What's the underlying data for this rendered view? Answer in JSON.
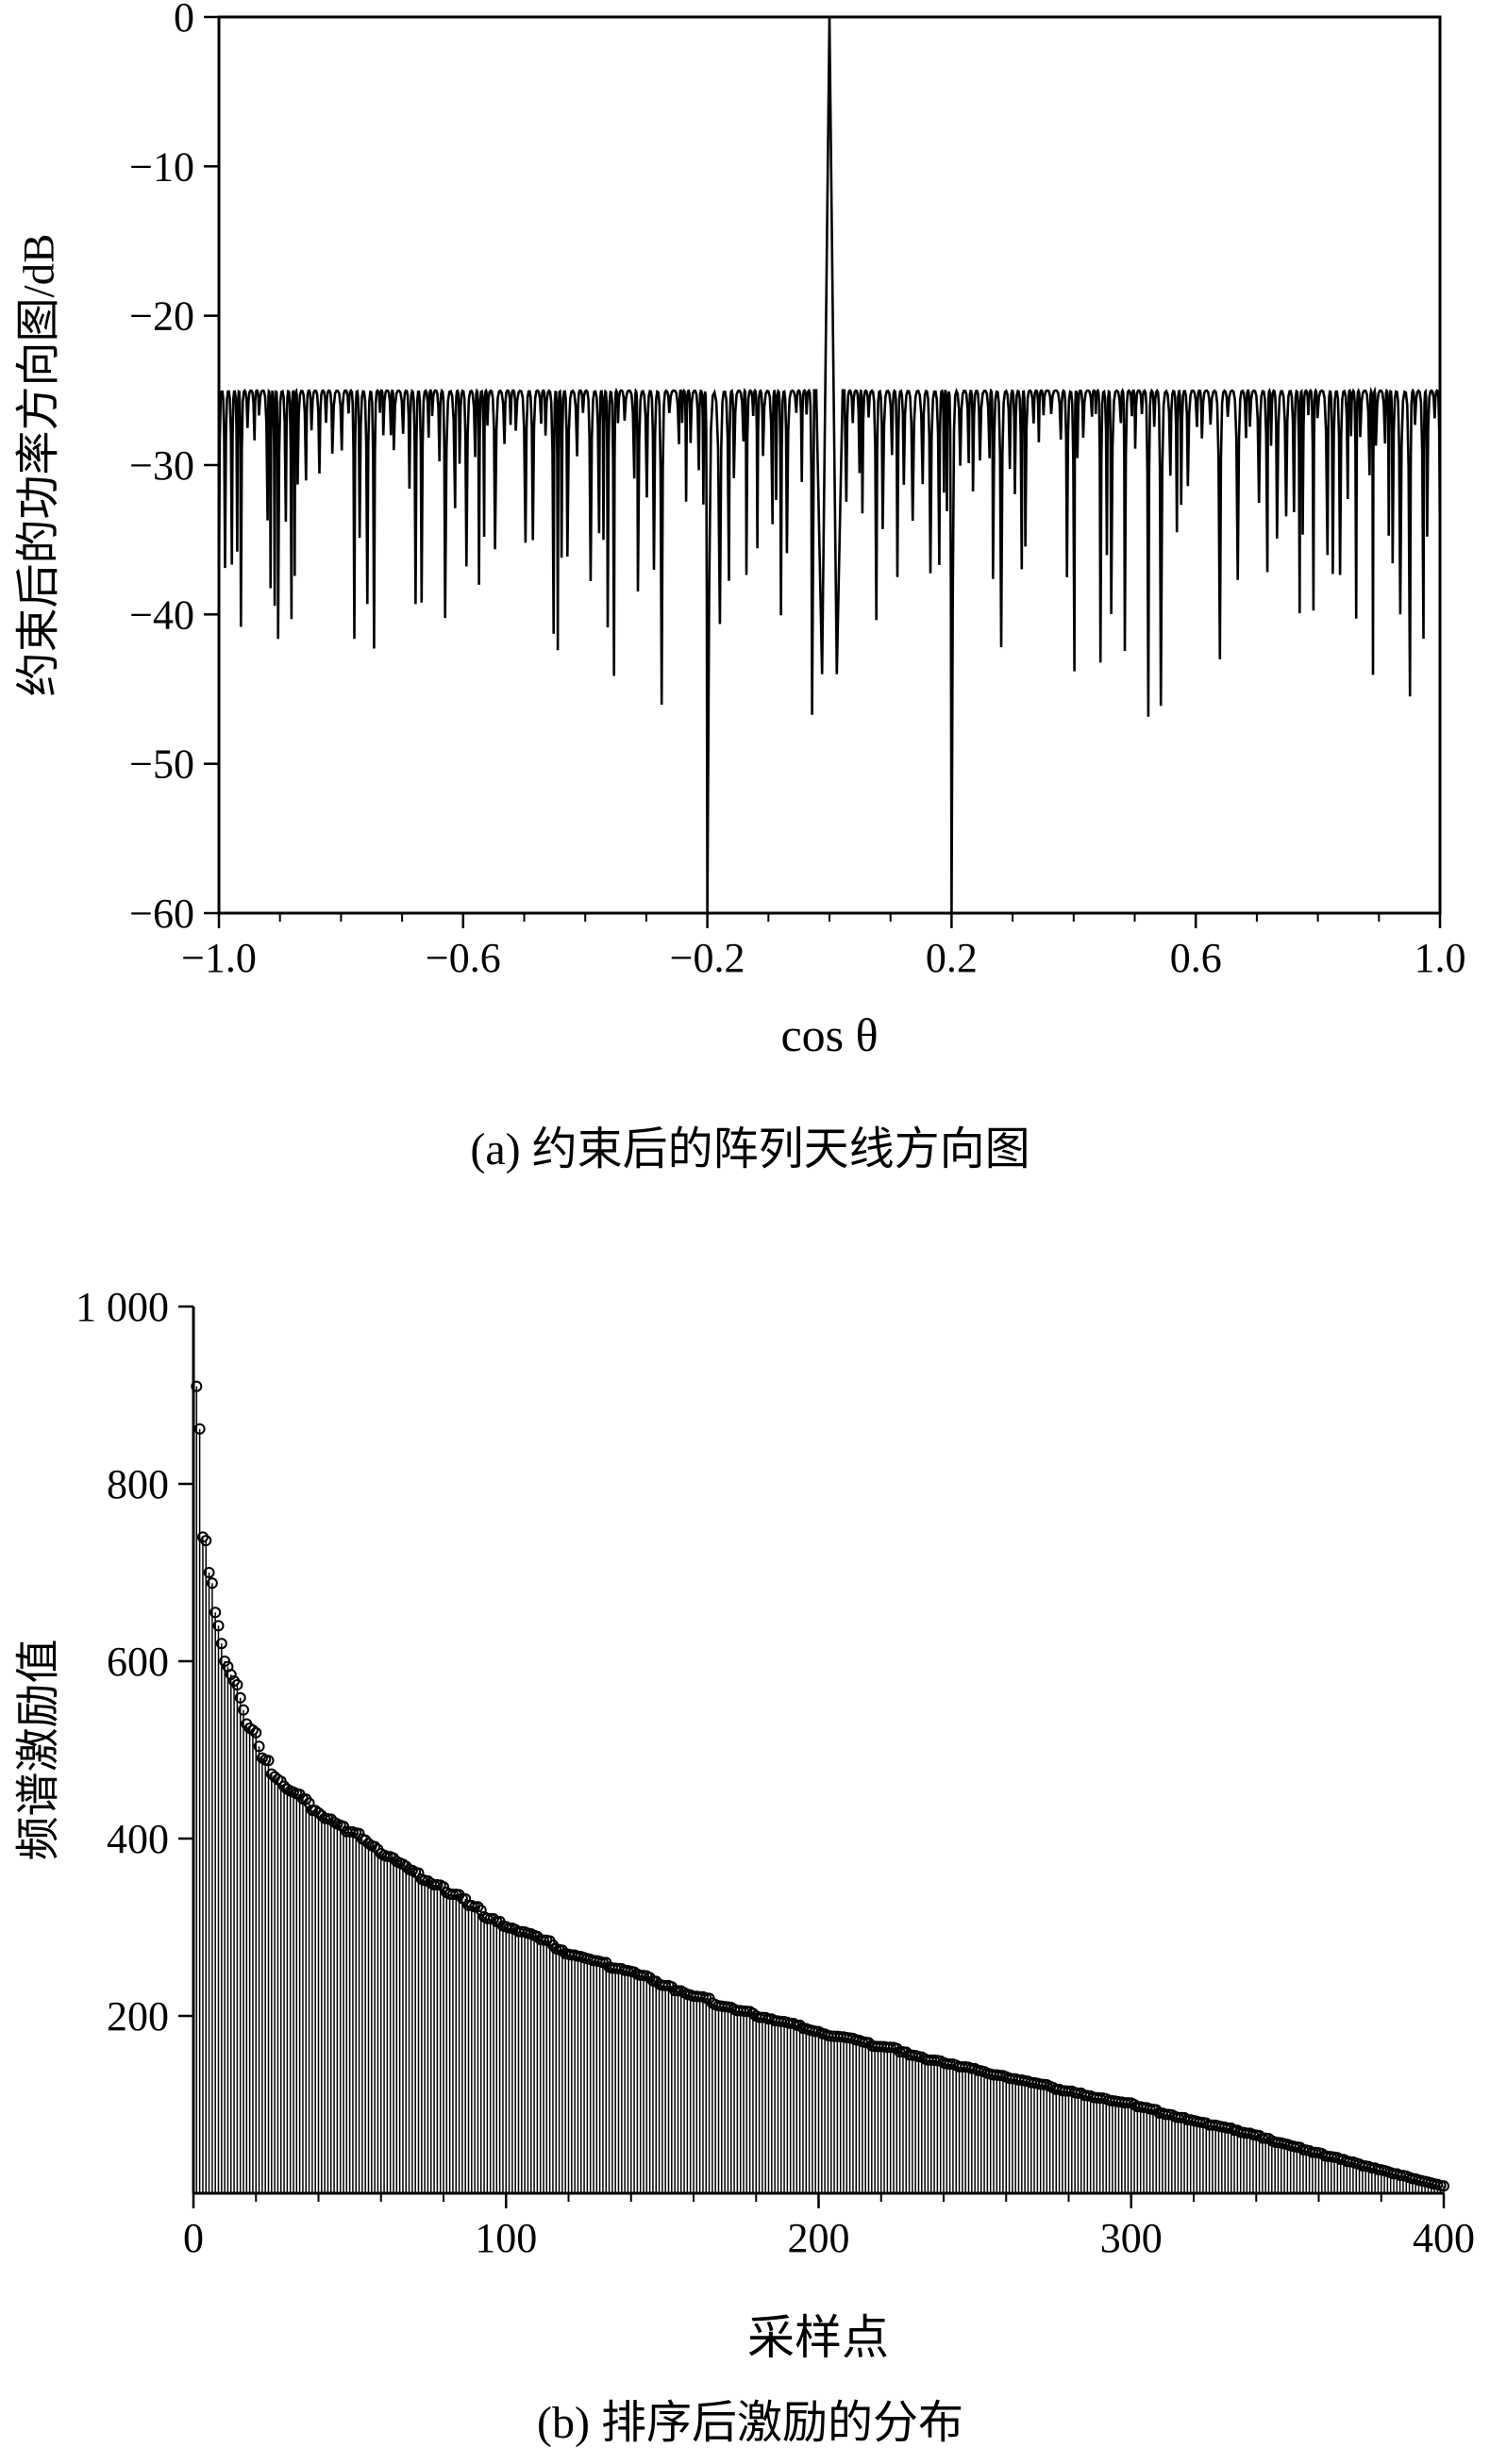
{
  "figure": {
    "background_color": "#ffffff",
    "line_color": "#000000"
  },
  "chart_data": [
    {
      "id": "constrained-array-pattern",
      "type": "line",
      "caption": "(a) 约束后的阵列天线方向图",
      "xlabel": "cos θ",
      "ylabel": "约束后的功率方向图/dB",
      "xlim": [
        -1.0,
        1.0
      ],
      "ylim": [
        -60,
        0
      ],
      "xticks": [
        -1.0,
        -0.6,
        -0.2,
        0.2,
        0.6,
        1.0
      ],
      "xtick_labels": [
        "−1.0",
        "−0.6",
        "−0.2",
        "0.2",
        "0.6",
        "1.0"
      ],
      "x_minor_tick_step": 0.1,
      "yticks": [
        0,
        -10,
        -20,
        -30,
        -40,
        -50,
        -60
      ],
      "ytick_labels": [
        "0",
        "−10",
        "−20",
        "−30",
        "−40",
        "−50",
        "−60"
      ],
      "grid": false,
      "legend": null,
      "frame": "box",
      "line_color": "#000000",
      "pattern": {
        "main_lobe_center": 0.0,
        "main_lobe_peak_db": 0,
        "main_lobe_half_width": 0.012,
        "main_lobe_base_db": -44,
        "sidelobe_ceiling_db": -25,
        "constrained_null_positions": [
          -0.2,
          0.2
        ],
        "constrained_null_depth_db": -60,
        "typical_null_depth_range_db": [
          -27,
          -47
        ]
      }
    },
    {
      "id": "sorted-excitation-distribution",
      "type": "stem",
      "caption": "(b) 排序后激励的分布",
      "xlabel": "采样点",
      "ylabel": "频谱激励值",
      "xlim": [
        0,
        400
      ],
      "ylim": [
        0,
        1000
      ],
      "xticks": [
        0,
        100,
        200,
        300,
        400
      ],
      "xtick_labels": [
        "0",
        "100",
        "200",
        "300",
        "400"
      ],
      "x_minor_tick_step": 20,
      "yticks": [
        200,
        400,
        600,
        800,
        1000
      ],
      "ytick_labels": [
        "200",
        "400",
        "600",
        "800",
        "1 000"
      ],
      "grid": false,
      "legend": null,
      "frame": "axes",
      "marker": "open-circle",
      "line_color": "#000000",
      "n_samples": 400,
      "envelope_points": [
        [
          1,
          910
        ],
        [
          2,
          862
        ],
        [
          3,
          740
        ],
        [
          4,
          736
        ],
        [
          5,
          700
        ],
        [
          6,
          688
        ],
        [
          7,
          655
        ],
        [
          8,
          640
        ],
        [
          9,
          620
        ],
        [
          10,
          600
        ],
        [
          11,
          592
        ],
        [
          12,
          585
        ],
        [
          14,
          568
        ],
        [
          16,
          550
        ],
        [
          18,
          535
        ],
        [
          20,
          515
        ],
        [
          23,
          492
        ],
        [
          26,
          472
        ],
        [
          30,
          455
        ],
        [
          35,
          442
        ],
        [
          40,
          430
        ],
        [
          45,
          418
        ],
        [
          50,
          408
        ],
        [
          60,
          385
        ],
        [
          70,
          362
        ],
        [
          80,
          345
        ],
        [
          90,
          322
        ],
        [
          100,
          300
        ],
        [
          110,
          288
        ],
        [
          120,
          272
        ],
        [
          130,
          260
        ],
        [
          140,
          248
        ],
        [
          150,
          235
        ],
        [
          160,
          222
        ],
        [
          170,
          212
        ],
        [
          180,
          202
        ],
        [
          200,
          182
        ],
        [
          220,
          165
        ],
        [
          240,
          148
        ],
        [
          260,
          132
        ],
        [
          280,
          115
        ],
        [
          300,
          100
        ],
        [
          320,
          82
        ],
        [
          340,
          65
        ],
        [
          360,
          45
        ],
        [
          380,
          26
        ],
        [
          400,
          8
        ]
      ]
    }
  ]
}
